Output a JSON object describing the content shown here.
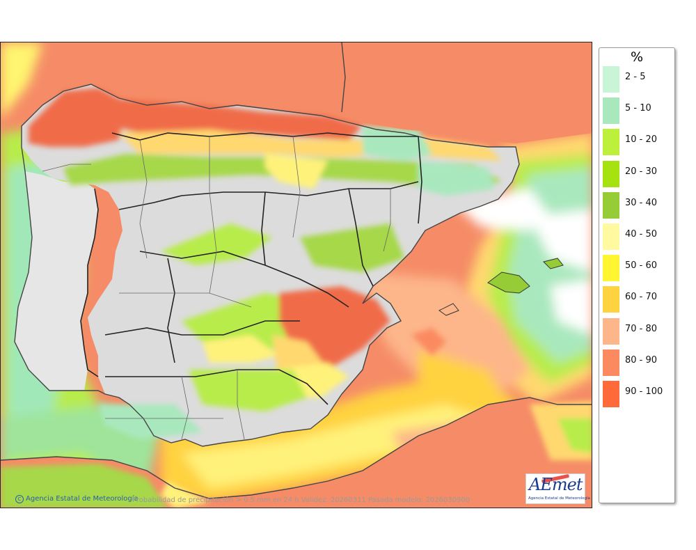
{
  "map": {
    "title": "Probabilidad de precipitación > 0.5 mm en 24 h Validez: 20260311 Pasada modelo: 2026030900",
    "credit": "Agencia Estatal de Meteorología",
    "credit_symbol": "C",
    "logo_text": "AEmet",
    "logo_subtitle": "Agencia Estatal de Meteorología"
  },
  "legend": {
    "unit": "%",
    "items": [
      {
        "label": "2 - 5",
        "color": "#c8f5d6"
      },
      {
        "label": "5 - 10",
        "color": "#a9e8bd"
      },
      {
        "label": "10 - 20",
        "color": "#bdf03a"
      },
      {
        "label": "20 - 30",
        "color": "#a6e110"
      },
      {
        "label": "30 - 40",
        "color": "#96cc35"
      },
      {
        "label": "40 - 50",
        "color": "#fffaa0"
      },
      {
        "label": "50 - 60",
        "color": "#fff530"
      },
      {
        "label": "60 - 70",
        "color": "#ffd240"
      },
      {
        "label": "70 - 80",
        "color": "#fdb58a"
      },
      {
        "label": "80 - 90",
        "color": "#fb8a60"
      },
      {
        "label": "90 - 100",
        "color": "#ff6a3a"
      }
    ]
  }
}
